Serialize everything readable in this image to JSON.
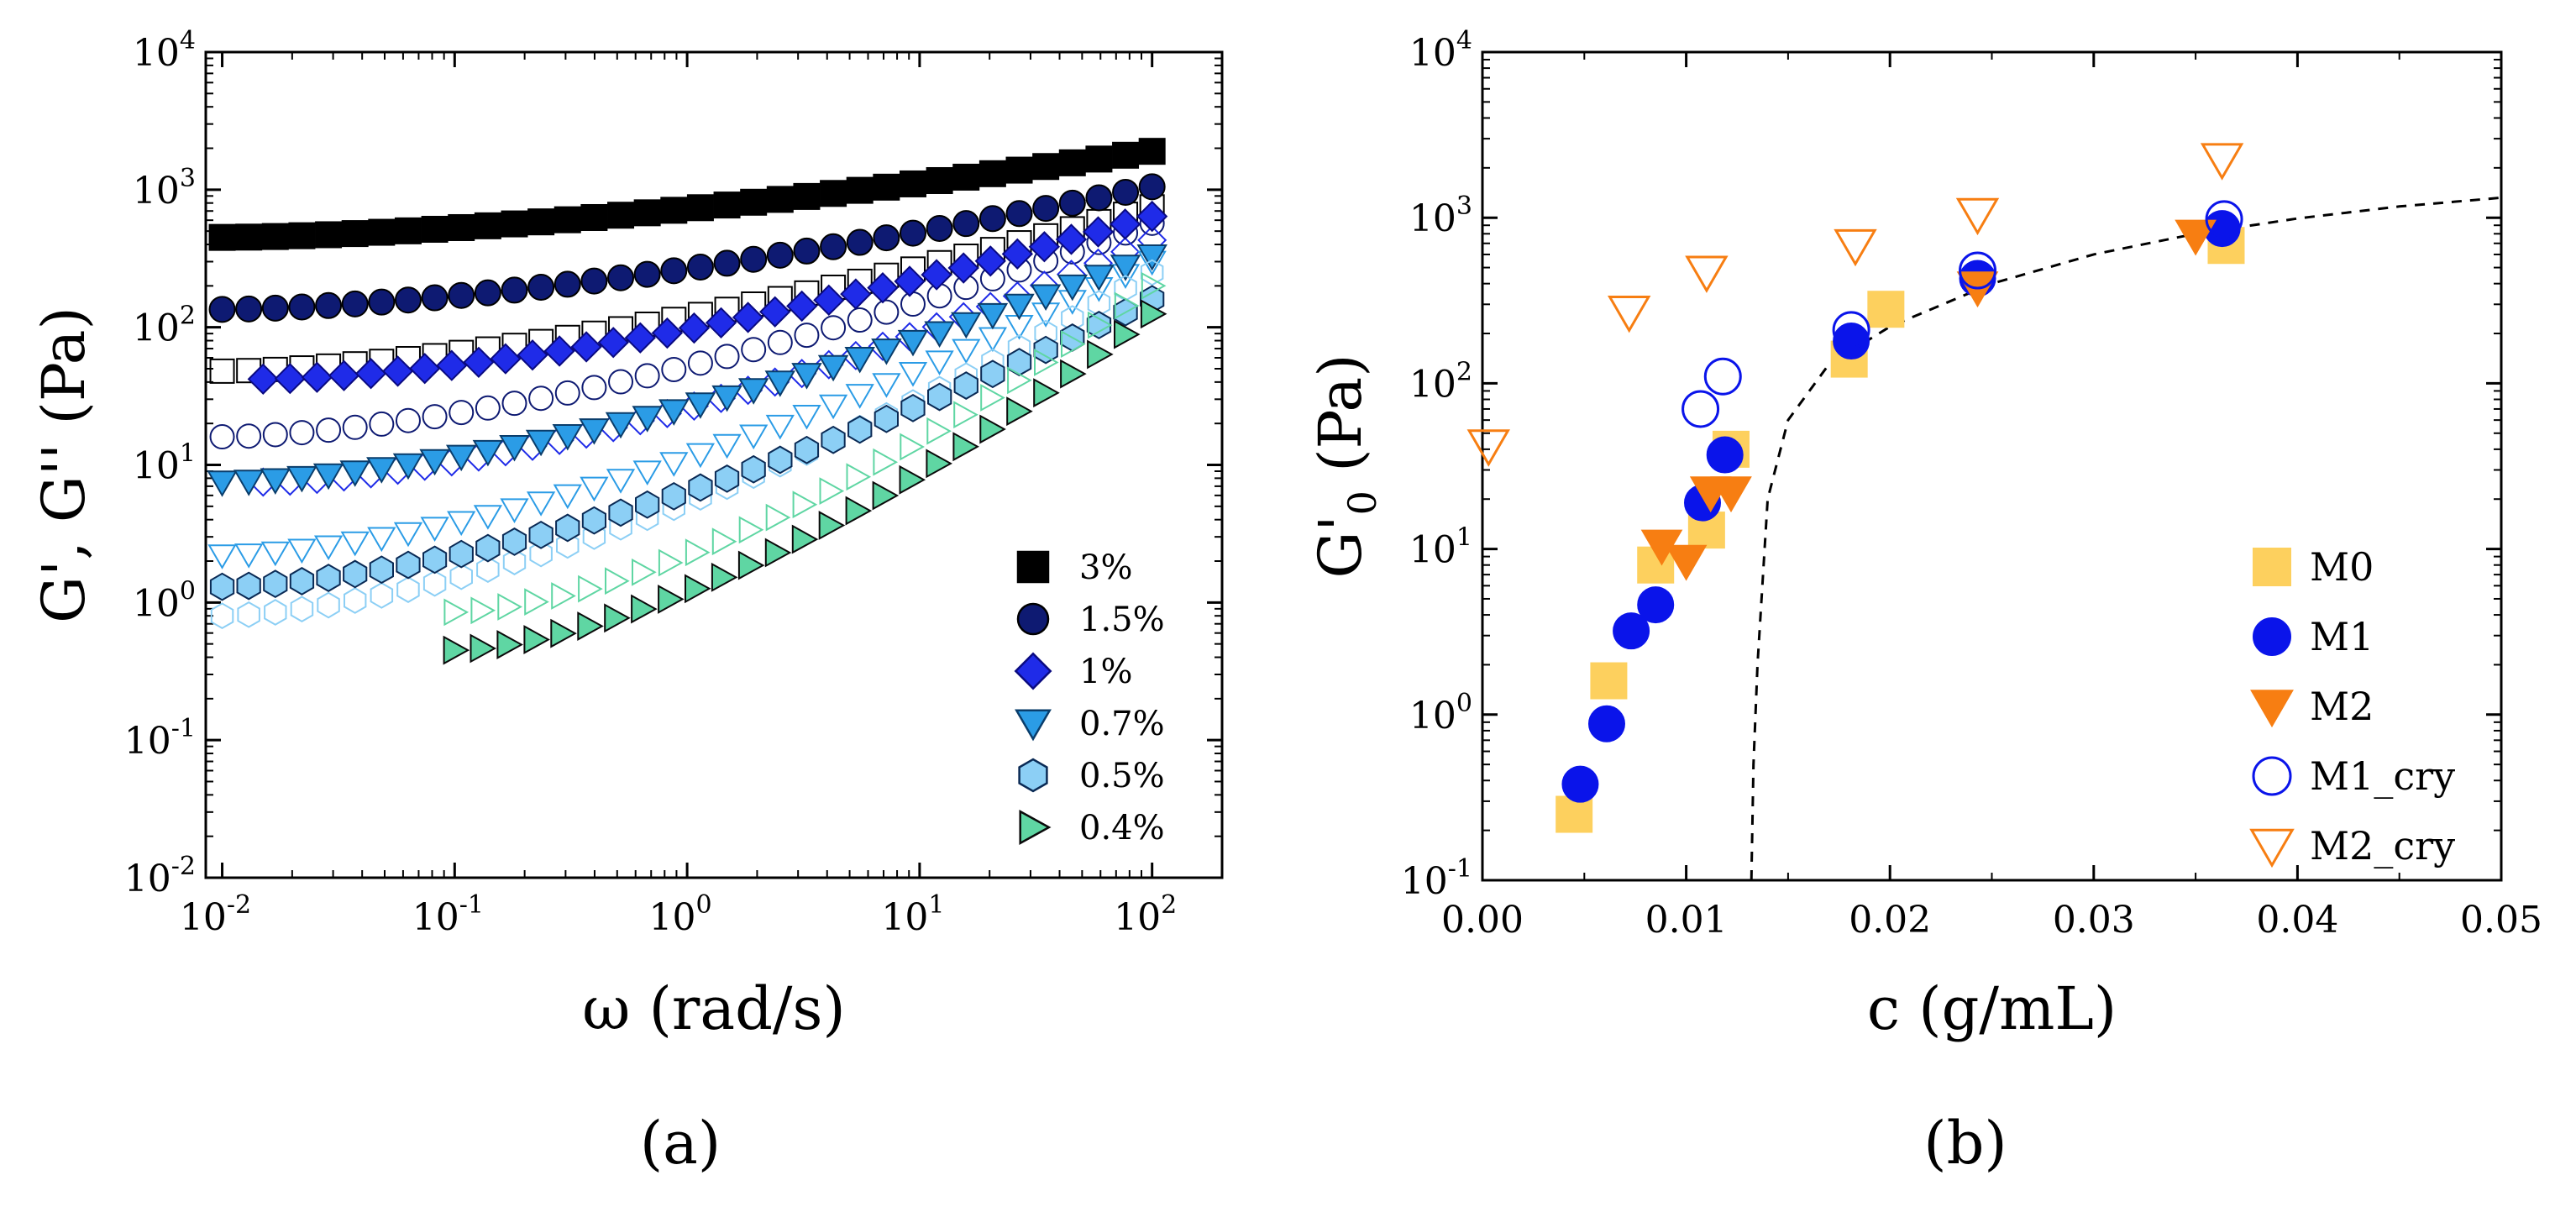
{
  "figure": {
    "panel_a_label": "(a)",
    "panel_b_label": "(b)"
  },
  "chart_data": [
    {
      "panel": "(a)",
      "type": "scatter",
      "xscale": "log",
      "yscale": "log",
      "xlabel": "ω (rad/s)",
      "ylabel": "G', G'' (Pa)",
      "xlim": [
        0.0085,
        200
      ],
      "ylim": [
        0.01,
        10000
      ],
      "xticks": [
        0.01,
        0.1,
        1,
        10,
        100
      ],
      "xtick_labels": [
        {
          "base": "10",
          "exp": "-2"
        },
        {
          "base": "10",
          "exp": "-1"
        },
        {
          "base": "10",
          "exp": "0"
        },
        {
          "base": "10",
          "exp": "1"
        },
        {
          "base": "10",
          "exp": "2"
        }
      ],
      "yticks": [
        0.01,
        0.1,
        1,
        10,
        100,
        1000,
        10000
      ],
      "ytick_labels": [
        {
          "base": "10",
          "exp": "-2"
        },
        {
          "base": "10",
          "exp": "-1"
        },
        {
          "base": "10",
          "exp": "0"
        },
        {
          "base": "10",
          "exp": "1"
        },
        {
          "base": "10",
          "exp": "2"
        },
        {
          "base": "10",
          "exp": "3"
        },
        {
          "base": "10",
          "exp": "4"
        }
      ],
      "legend_position": "bottom-right",
      "series": [
        {
          "name": "3%",
          "marker": "square",
          "fill": "#000000",
          "stroke": "#000000",
          "Gp": {
            "x_range": [
              0.01,
              100
            ],
            "y_start": 450,
            "y_end": 1900
          },
          "Gpp": {
            "x_range": [
              0.01,
              100
            ],
            "y_start": 48,
            "y_end": 750
          }
        },
        {
          "name": "1.5%",
          "marker": "circle",
          "fill": "#0e1a72",
          "stroke": "#000000",
          "Gp": {
            "x_range": [
              0.01,
              100
            ],
            "y_start": 135,
            "y_end": 1050
          },
          "Gpp": {
            "x_range": [
              0.01,
              100
            ],
            "y_start": 16,
            "y_end": 570
          }
        },
        {
          "name": "1%",
          "marker": "diamond",
          "fill": "#1f2be8",
          "stroke": "#0a0a80",
          "Gp": {
            "x_range": [
              0.015,
              100
            ],
            "y_start": 42,
            "y_end": 640
          },
          "Gpp": {
            "x_range": [
              0.015,
              100
            ],
            "y_start": 7.5,
            "y_end": 430
          }
        },
        {
          "name": "0.7%",
          "marker": "triangle-down",
          "fill": "#2b9ce6",
          "stroke": "#0a3d6b",
          "Gp": {
            "x_range": [
              0.01,
              100
            ],
            "y_start": 7.5,
            "y_end": 330
          },
          "Gpp": {
            "x_range": [
              0.01,
              100
            ],
            "y_start": 2.2,
            "y_end": 300
          }
        },
        {
          "name": "0.5%",
          "marker": "hexagon",
          "fill": "#8ccff5",
          "stroke": "#0a2a55",
          "Gp": {
            "x_range": [
              0.01,
              100
            ],
            "y_start": 1.3,
            "y_end": 160
          },
          "Gpp": {
            "x_range": [
              0.01,
              100
            ],
            "y_start": 0.8,
            "y_end": 250
          }
        },
        {
          "name": "0.4%",
          "marker": "triangle-right",
          "fill": "#5fd6a3",
          "stroke": "#0a0a0a",
          "Gp": {
            "x_range": [
              0.1,
              100
            ],
            "y_start": 0.45,
            "y_end": 125
          },
          "Gpp": {
            "x_range": [
              0.1,
              100
            ],
            "y_start": 0.85,
            "y_end": 200
          }
        }
      ]
    },
    {
      "panel": "(b)",
      "type": "scatter",
      "xscale": "linear",
      "yscale": "log",
      "xlabel": "c (g/mL)",
      "ylabel_main": "G'",
      "ylabel_sub": "0",
      "ylabel_unit": "(Pa)",
      "xlim": [
        0.0,
        0.05
      ],
      "ylim": [
        0.1,
        10000
      ],
      "xticks": [
        0.0,
        0.01,
        0.02,
        0.03,
        0.04,
        0.05
      ],
      "xtick_labels": [
        "0.00",
        "0.01",
        "0.02",
        "0.03",
        "0.04",
        "0.05"
      ],
      "yticks": [
        0.1,
        1,
        10,
        100,
        1000,
        10000
      ],
      "ytick_labels": [
        {
          "base": "10",
          "exp": "-1"
        },
        {
          "base": "10",
          "exp": "0"
        },
        {
          "base": "10",
          "exp": "1"
        },
        {
          "base": "10",
          "exp": "2"
        },
        {
          "base": "10",
          "exp": "3"
        },
        {
          "base": "10",
          "exp": "4"
        }
      ],
      "legend_position": "bottom-right",
      "series": [
        {
          "name": "M0",
          "marker": "square",
          "fill": "#fdd05e",
          "stroke": "#fdd05e",
          "points": [
            [
              0.0045,
              0.25
            ],
            [
              0.0062,
              1.6
            ],
            [
              0.0085,
              8.0
            ],
            [
              0.011,
              13
            ],
            [
              0.0122,
              40
            ],
            [
              0.018,
              140
            ],
            [
              0.0198,
              280
            ],
            [
              0.0365,
              680
            ]
          ]
        },
        {
          "name": "M1",
          "marker": "circle",
          "fill": "#0a14ea",
          "stroke": "#0a14ea",
          "points": [
            [
              0.0048,
              0.38
            ],
            [
              0.0061,
              0.88
            ],
            [
              0.0073,
              3.2
            ],
            [
              0.0085,
              4.6
            ],
            [
              0.0108,
              19
            ],
            [
              0.0119,
              37
            ],
            [
              0.0181,
              180
            ],
            [
              0.0243,
              430
            ],
            [
              0.0363,
              860
            ]
          ]
        },
        {
          "name": "M2",
          "marker": "triangle-down",
          "fill": "#f77e12",
          "stroke": "#f77e12",
          "points": [
            [
              0.0088,
              10.5
            ],
            [
              0.01,
              8.5
            ],
            [
              0.0112,
              22
            ],
            [
              0.0122,
              22
            ],
            [
              0.0243,
              380
            ],
            [
              0.035,
              780
            ]
          ]
        },
        {
          "name": "M1_cry",
          "marker": "circle-open",
          "fill": "none",
          "stroke": "#0a14ea",
          "points": [
            [
              0.0107,
              70
            ],
            [
              0.0118,
              110
            ],
            [
              0.0181,
              210
            ],
            [
              0.0243,
              480
            ],
            [
              0.0364,
              980
            ]
          ]
        },
        {
          "name": "M2_cry",
          "marker": "triangle-down-open",
          "fill": "none",
          "stroke": "#f77e12",
          "points": [
            [
              0.0003,
              42
            ],
            [
              0.0072,
              270
            ],
            [
              0.011,
              470
            ],
            [
              0.0183,
              680
            ],
            [
              0.0243,
              1050
            ],
            [
              0.0363,
              2250
            ]
          ]
        }
      ],
      "fit_curve": {
        "style": "dashed",
        "color": "#000000",
        "points": [
          [
            0.0132,
            0.1
          ],
          [
            0.0133,
            0.5
          ],
          [
            0.0135,
            2
          ],
          [
            0.014,
            20
          ],
          [
            0.015,
            60
          ],
          [
            0.017,
            130
          ],
          [
            0.02,
            220
          ],
          [
            0.025,
            400
          ],
          [
            0.03,
            600
          ],
          [
            0.035,
            800
          ],
          [
            0.04,
            990
          ],
          [
            0.045,
            1170
          ],
          [
            0.05,
            1320
          ]
        ]
      }
    }
  ]
}
